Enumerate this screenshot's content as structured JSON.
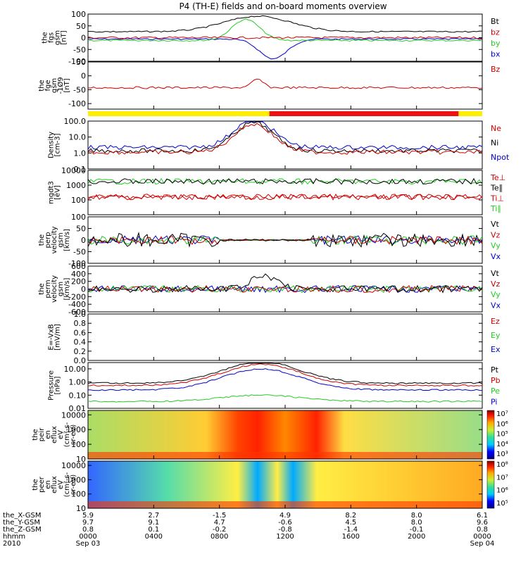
{
  "title": "P4 (TH-E) fields and on-board moments overview",
  "chart_data": {
    "type": "line",
    "date": "Sep 03 2010",
    "panels": [
      {
        "id": "fgs",
        "ylabel": [
          "the",
          "fgs",
          "gsm",
          "[nT]"
        ],
        "ylim": [
          -100,
          100
        ],
        "yticks": [
          "100",
          "50",
          "0",
          "-50",
          "-100"
        ],
        "legend": [
          {
            "name": "Bt",
            "color": "#000000"
          },
          {
            "name": "bz",
            "color": "#cc0000"
          },
          {
            "name": "by",
            "color": "#22cc22"
          },
          {
            "name": "bx",
            "color": "#0000cc"
          }
        ]
      },
      {
        "id": "fge",
        "ylabel": [
          "the",
          "fge",
          "gsm",
          "-1Ø9",
          "[nT]"
        ],
        "ylim": [
          -120,
          50
        ],
        "yticks": [
          "50",
          "0",
          "-50",
          "-100"
        ],
        "legend": [
          {
            "name": "Bz",
            "color": "#cc0000"
          }
        ]
      },
      {
        "id": "density",
        "ylabel": [
          "Density",
          "[cm-3]"
        ],
        "ylim": [
          0.1,
          100
        ],
        "log": true,
        "yticks": [
          "100.0",
          "10.0",
          "1.0",
          "0.1"
        ],
        "legend": [
          {
            "name": "Ne",
            "color": "#cc0000"
          },
          {
            "name": "Ni",
            "color": "#000000"
          },
          {
            "name": "Npot",
            "color": "#0000cc"
          }
        ]
      },
      {
        "id": "temperature",
        "ylabel": [
          "mgdt3",
          "[eV]"
        ],
        "ylim": [
          10,
          10000
        ],
        "log": true,
        "yticks": [
          "10000",
          "1000",
          "100"
        ],
        "legend": [
          {
            "name": "Te⊥",
            "color": "#cc0000"
          },
          {
            "name": "Te∥",
            "color": "#000000"
          },
          {
            "name": "Ti⊥",
            "color": "#cc0000"
          },
          {
            "name": "Ti∥",
            "color": "#22cc22"
          }
        ]
      },
      {
        "id": "vperp",
        "ylabel": [
          "the",
          "perp",
          "velocity",
          "gsm",
          "[km/s]"
        ],
        "ylim": [
          -100,
          100
        ],
        "yticks": [
          "100",
          "50",
          "0",
          "-50",
          "-100"
        ],
        "legend": [
          {
            "name": "Vt",
            "color": "#000000"
          },
          {
            "name": "Vz",
            "color": "#cc0000"
          },
          {
            "name": "Vy",
            "color": "#22cc22"
          },
          {
            "name": "Vx",
            "color": "#0000cc"
          }
        ]
      },
      {
        "id": "vperm",
        "ylabel": [
          "the",
          "perm",
          "velocity",
          "gsm",
          "[km/s]"
        ],
        "ylim": [
          -600,
          600
        ],
        "yticks": [
          "600",
          "400",
          "200",
          "0",
          "-200",
          "-400",
          "-600"
        ],
        "legend": [
          {
            "name": "Vt",
            "color": "#000000"
          },
          {
            "name": "Vz",
            "color": "#cc0000"
          },
          {
            "name": "Vy",
            "color": "#22cc22"
          },
          {
            "name": "Vx",
            "color": "#0000cc"
          }
        ]
      },
      {
        "id": "efield",
        "ylabel": [
          "E=-VxB",
          "[mV/m]"
        ],
        "ylim": [
          0,
          1
        ],
        "yticks": [
          "1.0",
          "0.8",
          "0.6",
          "0.4",
          "0.2",
          "0.0"
        ],
        "legend": [
          {
            "name": "Ez",
            "color": "#cc0000"
          },
          {
            "name": "Ey",
            "color": "#22cc22"
          },
          {
            "name": "Ex",
            "color": "#0000cc"
          }
        ]
      },
      {
        "id": "pressure",
        "ylabel": [
          "Pressure",
          "[nPa]"
        ],
        "ylim": [
          0.01,
          30
        ],
        "log": true,
        "yticks": [
          "10.00",
          "1.00",
          "0.10",
          "0.01"
        ],
        "legend": [
          {
            "name": "Pt",
            "color": "#000000"
          },
          {
            "name": "Pb",
            "color": "#cc0000"
          },
          {
            "name": "Pe",
            "color": "#22cc22"
          },
          {
            "name": "Pi",
            "color": "#0000cc"
          }
        ]
      },
      {
        "id": "ion_spec",
        "ylabel": [
          "the",
          "peir",
          "en",
          "eflux",
          "eV",
          "(cm²-s-",
          "sr-eV)"
        ],
        "ylim": [
          10,
          20000
        ],
        "log": true,
        "yticks": [
          "10000",
          "1000",
          "100",
          "10"
        ],
        "colorbar": [
          "10⁷",
          "10⁶",
          "10⁵",
          "10⁴",
          "10³"
        ]
      },
      {
        "id": "elec_spec",
        "ylabel": [
          "the",
          "peer",
          "en",
          "eflux",
          "eV",
          "(cm²-s-",
          "sr-eV)"
        ],
        "ylim": [
          10,
          20000
        ],
        "log": true,
        "yticks": [
          "10000",
          "1000",
          "100",
          "10"
        ],
        "colorbar": [
          "10⁸",
          "10⁷",
          "10⁶",
          "10⁵"
        ]
      }
    ],
    "x_axis": {
      "row_labels": [
        "the_X-GSM",
        "the_Y-GSM",
        "the_Z-GSM",
        "hhmm",
        "2010"
      ],
      "ticks": [
        {
          "x": "5.9",
          "y": "9.7",
          "z": "0.8",
          "hhmm": "0000",
          "date": "Sep 03"
        },
        {
          "x": "2.7",
          "y": "9.1",
          "z": "0.1",
          "hhmm": "0400",
          "date": ""
        },
        {
          "x": "-1.5",
          "y": "4.7",
          "z": "-0.2",
          "hhmm": "0800",
          "date": ""
        },
        {
          "x": "4.9",
          "y": "-0.6",
          "z": "-0.8",
          "hhmm": "1200",
          "date": ""
        },
        {
          "x": "8.2",
          "y": "4.5",
          "z": "-1.4",
          "hhmm": "1600",
          "date": ""
        },
        {
          "x": "8.0",
          "y": "8.0",
          "z": "-0.1",
          "hhmm": "2000",
          "date": ""
        },
        {
          "x": "6.1",
          "y": "9.6",
          "z": "0.8",
          "hhmm": "0000",
          "date": "Sep 04"
        }
      ]
    }
  }
}
